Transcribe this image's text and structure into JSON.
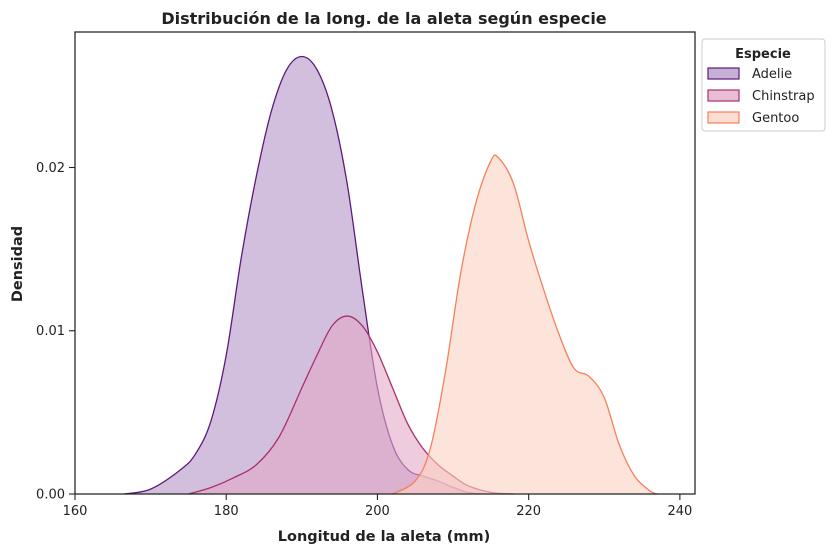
{
  "chart_data": {
    "type": "area",
    "title": "Distribución de la long. de la aleta según especie",
    "xlabel": "Longitud de la aleta (mm)",
    "ylabel": "Densidad",
    "xlim": [
      160,
      242
    ],
    "ylim": [
      0,
      0.0283
    ],
    "xticks": [
      160,
      180,
      200,
      220,
      240
    ],
    "xtick_labels": [
      "160",
      "180",
      "200",
      "220",
      "240"
    ],
    "yticks": [
      0,
      0.01,
      0.02
    ],
    "ytick_labels": [
      "0.00",
      "0.01",
      "0.02"
    ],
    "legend_title": "Especie",
    "legend_position": "outside-top-right",
    "series": [
      {
        "name": "Adelie",
        "color": "#5c1a7a",
        "fill": "#b495c8",
        "points": [
          [
            166.5,
            0.0
          ],
          [
            170,
            0.0003
          ],
          [
            174,
            0.0015
          ],
          [
            176,
            0.0025
          ],
          [
            178,
            0.0045
          ],
          [
            180,
            0.0085
          ],
          [
            182,
            0.0145
          ],
          [
            184,
            0.0195
          ],
          [
            186,
            0.0235
          ],
          [
            188,
            0.026
          ],
          [
            190,
            0.0268
          ],
          [
            192,
            0.026
          ],
          [
            194,
            0.0235
          ],
          [
            196,
            0.019
          ],
          [
            198,
            0.0125
          ],
          [
            200,
            0.0065
          ],
          [
            202,
            0.003
          ],
          [
            204,
            0.0015
          ],
          [
            206,
            0.0011
          ],
          [
            208,
            0.0008
          ],
          [
            210,
            0.0004
          ],
          [
            212,
            0.0001
          ],
          [
            214,
            0.0
          ]
        ]
      },
      {
        "name": "Chinstrap",
        "color": "#a8306e",
        "fill": "#e2a8c6",
        "points": [
          [
            175,
            0.0
          ],
          [
            178,
            0.0004
          ],
          [
            181,
            0.001
          ],
          [
            184,
            0.0018
          ],
          [
            187,
            0.0035
          ],
          [
            190,
            0.0065
          ],
          [
            192,
            0.0085
          ],
          [
            194,
            0.0103
          ],
          [
            196,
            0.0109
          ],
          [
            198,
            0.0103
          ],
          [
            200,
            0.0087
          ],
          [
            202,
            0.0065
          ],
          [
            204,
            0.0043
          ],
          [
            206,
            0.0028
          ],
          [
            208,
            0.0018
          ],
          [
            210,
            0.0011
          ],
          [
            212,
            0.0005
          ],
          [
            215,
            0.0001
          ],
          [
            218,
            0.0
          ]
        ]
      },
      {
        "name": "Gentoo",
        "color": "#f4805e",
        "fill": "#fcd2c3",
        "points": [
          [
            202,
            0.0
          ],
          [
            205,
            0.0008
          ],
          [
            207,
            0.0028
          ],
          [
            209,
            0.0075
          ],
          [
            211,
            0.0135
          ],
          [
            213,
            0.0178
          ],
          [
            215,
            0.0204
          ],
          [
            216,
            0.0206
          ],
          [
            218,
            0.019
          ],
          [
            220,
            0.0155
          ],
          [
            222,
            0.0125
          ],
          [
            224,
            0.0098
          ],
          [
            226,
            0.0077
          ],
          [
            228,
            0.0072
          ],
          [
            230,
            0.0059
          ],
          [
            232,
            0.003
          ],
          [
            234,
            0.0011
          ],
          [
            236,
            0.0002
          ],
          [
            237,
            0.0
          ]
        ]
      }
    ]
  }
}
